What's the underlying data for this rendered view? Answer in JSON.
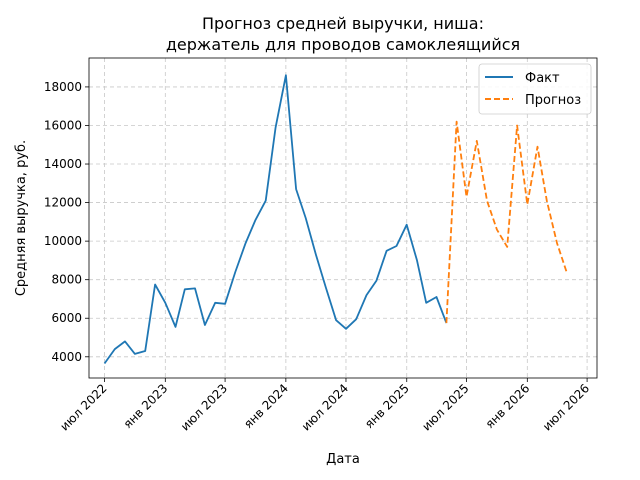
{
  "chart_data": {
    "type": "line",
    "title": [
      "Прогноз средней выручки, ниша:",
      "держатель для проводов самоклеящийся"
    ],
    "xlabel": "Дата",
    "ylabel": "Средняя выручка, руб.",
    "xlim": [
      "2022-05-15",
      "2026-07-31"
    ],
    "ylim": [
      2900,
      19500
    ],
    "grid": true,
    "legend_position": "top-right",
    "x_ticks": [
      {
        "date": "2022-07-01",
        "label": "июл 2022"
      },
      {
        "date": "2023-01-01",
        "label": "янв 2023"
      },
      {
        "date": "2023-07-01",
        "label": "июл 2023"
      },
      {
        "date": "2024-01-01",
        "label": "янв 2024"
      },
      {
        "date": "2024-07-01",
        "label": "июл 2024"
      },
      {
        "date": "2025-01-01",
        "label": "янв 2025"
      },
      {
        "date": "2025-07-01",
        "label": "июл 2025"
      },
      {
        "date": "2026-01-01",
        "label": "янв 2026"
      },
      {
        "date": "2026-07-01",
        "label": "июл 2026"
      }
    ],
    "y_ticks": [
      4000,
      6000,
      8000,
      10000,
      12000,
      14000,
      16000,
      18000
    ],
    "series": [
      {
        "name": "Факт",
        "color": "#1f77b4",
        "style": "solid",
        "points": [
          {
            "x": "2022-07-01",
            "y": 3650
          },
          {
            "x": "2022-08-01",
            "y": 4400
          },
          {
            "x": "2022-09-01",
            "y": 4800
          },
          {
            "x": "2022-10-01",
            "y": 4150
          },
          {
            "x": "2022-11-01",
            "y": 4300
          },
          {
            "x": "2022-12-01",
            "y": 7750
          },
          {
            "x": "2023-01-01",
            "y": 6800
          },
          {
            "x": "2023-02-01",
            "y": 5550
          },
          {
            "x": "2023-03-01",
            "y": 7500
          },
          {
            "x": "2023-04-01",
            "y": 7550
          },
          {
            "x": "2023-05-01",
            "y": 5650
          },
          {
            "x": "2023-06-01",
            "y": 6800
          },
          {
            "x": "2023-07-01",
            "y": 6750
          },
          {
            "x": "2023-08-01",
            "y": 8400
          },
          {
            "x": "2023-09-01",
            "y": 9900
          },
          {
            "x": "2023-10-01",
            "y": 11100
          },
          {
            "x": "2023-11-01",
            "y": 12100
          },
          {
            "x": "2023-12-01",
            "y": 15900
          },
          {
            "x": "2024-01-01",
            "y": 18600
          },
          {
            "x": "2024-02-01",
            "y": 12700
          },
          {
            "x": "2024-03-01",
            "y": 11200
          },
          {
            "x": "2024-04-01",
            "y": 9300
          },
          {
            "x": "2024-05-01",
            "y": 7600
          },
          {
            "x": "2024-06-01",
            "y": 5900
          },
          {
            "x": "2024-07-01",
            "y": 5450
          },
          {
            "x": "2024-08-01",
            "y": 5950
          },
          {
            "x": "2024-09-01",
            "y": 7200
          },
          {
            "x": "2024-10-01",
            "y": 7950
          },
          {
            "x": "2024-11-01",
            "y": 9500
          },
          {
            "x": "2024-12-01",
            "y": 9750
          },
          {
            "x": "2025-01-01",
            "y": 10850
          },
          {
            "x": "2025-02-01",
            "y": 9000
          },
          {
            "x": "2025-03-01",
            "y": 6800
          },
          {
            "x": "2025-04-01",
            "y": 7100
          },
          {
            "x": "2025-05-01",
            "y": 5750
          }
        ]
      },
      {
        "name": "Прогноз",
        "color": "#ff7f0e",
        "style": "dashed",
        "points": [
          {
            "x": "2025-05-01",
            "y": 5750
          },
          {
            "x": "2025-06-01",
            "y": 16200
          },
          {
            "x": "2025-07-01",
            "y": 12300
          },
          {
            "x": "2025-08-01",
            "y": 15200
          },
          {
            "x": "2025-09-01",
            "y": 12100
          },
          {
            "x": "2025-10-01",
            "y": 10600
          },
          {
            "x": "2025-11-01",
            "y": 9700
          },
          {
            "x": "2025-12-01",
            "y": 16000
          },
          {
            "x": "2026-01-01",
            "y": 11900
          },
          {
            "x": "2026-02-01",
            "y": 14900
          },
          {
            "x": "2026-03-01",
            "y": 12100
          },
          {
            "x": "2026-04-01",
            "y": 9900
          },
          {
            "x": "2026-05-01",
            "y": 8350
          }
        ]
      }
    ]
  }
}
